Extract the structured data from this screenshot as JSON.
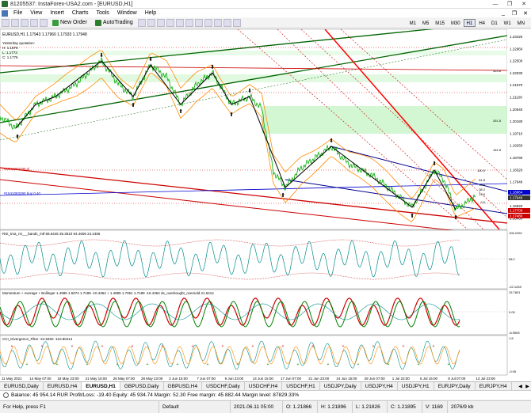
{
  "window": {
    "title": "81205537: InstaForex-USA2.com - [EURUSD,H1]",
    "minimize": "—",
    "maximize": "❐",
    "close": "✕"
  },
  "menu": [
    "File",
    "View",
    "Insert",
    "Charts",
    "Tools",
    "Window",
    "Help"
  ],
  "menu_right": [
    "_",
    "❐",
    "✕"
  ],
  "toolbar": {
    "new_order": "New Order",
    "autotrading": "AutoTrading",
    "timeframes": [
      "M1",
      "M5",
      "M15",
      "M30",
      "H1",
      "H4",
      "D1",
      "W1",
      "MN"
    ],
    "active_timeframe": "H1"
  },
  "chart": {
    "symbol_info": "EURUSD,H1  1.17943 1.17960 1.17933 1.17948",
    "yesterday_label": "Yesterday quotation:",
    "yesterday_h": "H: 1.1876",
    "yesterday_l": "L: 1.1773",
    "yesterday_c": "C: 1.1776",
    "order_label_1": "#1541083290 sl",
    "order_label_2": "#1541083290 buy 0.40",
    "price_levels": [
      "1.23420",
      "1.22960",
      "1.22500",
      "1.22030",
      "1.21570",
      "1.21100",
      "1.20640",
      "1.20180",
      "1.19710",
      "1.19250",
      "1.18790",
      "1.18320",
      "1.17948",
      "1.17390",
      "1.16920",
      "1.16460"
    ],
    "fib_labels": [
      "423.6",
      "261.8",
      "161.8",
      "100.0",
      "61.8",
      "50.0",
      "38.2",
      "23.6",
      "0.0"
    ],
    "price_tags": [
      {
        "text": "1.18864",
        "color": "#0000cc"
      },
      {
        "text": "1.17948",
        "color": "#333333"
      },
      {
        "text": "1.17700",
        "color": "#cc0000"
      },
      {
        "text": "1.17480",
        "color": "#cc0000"
      }
    ],
    "rsi_label": "RSI_tma_rsi___bands_mtf 68.6445 35.3510 84.4606 24.2465",
    "rsi_levels": [
      "106.2492",
      "58.2",
      "-22.1269"
    ],
    "mom_label": "Momentum + Average + Bollinger 1.4995 1.5074 1.7189 -10.4364 + 1.4995 1.7051 1.7189 -10.4364 ds_overbought_oversold 21.5414",
    "mom_levels": [
      "15.7801",
      "0.00",
      "-8.9505"
    ],
    "cci_label": "CCI_Divergence_Filter -24.8460 -110.80414",
    "cci_levels": [
      "1.8",
      "-0.05"
    ],
    "time_labels": [
      "11 May 2021",
      "14 May 07:00",
      "18 May 23:00",
      "21 May 15:00",
      "26 May 07:00",
      "28 May 23:00",
      "2 Jun 15:00",
      "7 Jun 07:00",
      "9 Jun 23:00",
      "14 Jun 15:00",
      "17 Jun 07:00",
      "21 Jun 23:00",
      "24 Jun 15:00",
      "29 Jun 07:00",
      "1 Jul 23:00",
      "6 Jul 15:00",
      "9 Jul 07:00",
      "13 Jul 23:00"
    ]
  },
  "tabs": [
    "EURUSD,Daily",
    "EURUSD,H4",
    "EURUSD,H1",
    "GBPUSD,Daily",
    "GBPUSD,H4",
    "USDCHF,Daily",
    "USDCHF,H4",
    "USDCHF,H1",
    "USDJPY,Daily",
    "USDJPY,H4",
    "USDJPY,H1",
    "EURJPY,Daily",
    "EURJPY,H4"
  ],
  "active_tab": "EURUSD,H1",
  "balance": "Balance: 45 954.14 RUR  Profit/Loss: -19.40  Equity: 45 934.74  Margin: 52.30  Free margin: 45 882.44  Margin level: 87829.33%",
  "status": {
    "help": "For Help, press F1",
    "profile": "Default",
    "datetime": "2021.06.11 05:00",
    "open": "O: 1.21866",
    "high": "H: 1.21896",
    "low": "L: 1.21826",
    "close": "C: 1.21895",
    "volume": "V: 1169",
    "traffic": "2076/9 kb"
  }
}
